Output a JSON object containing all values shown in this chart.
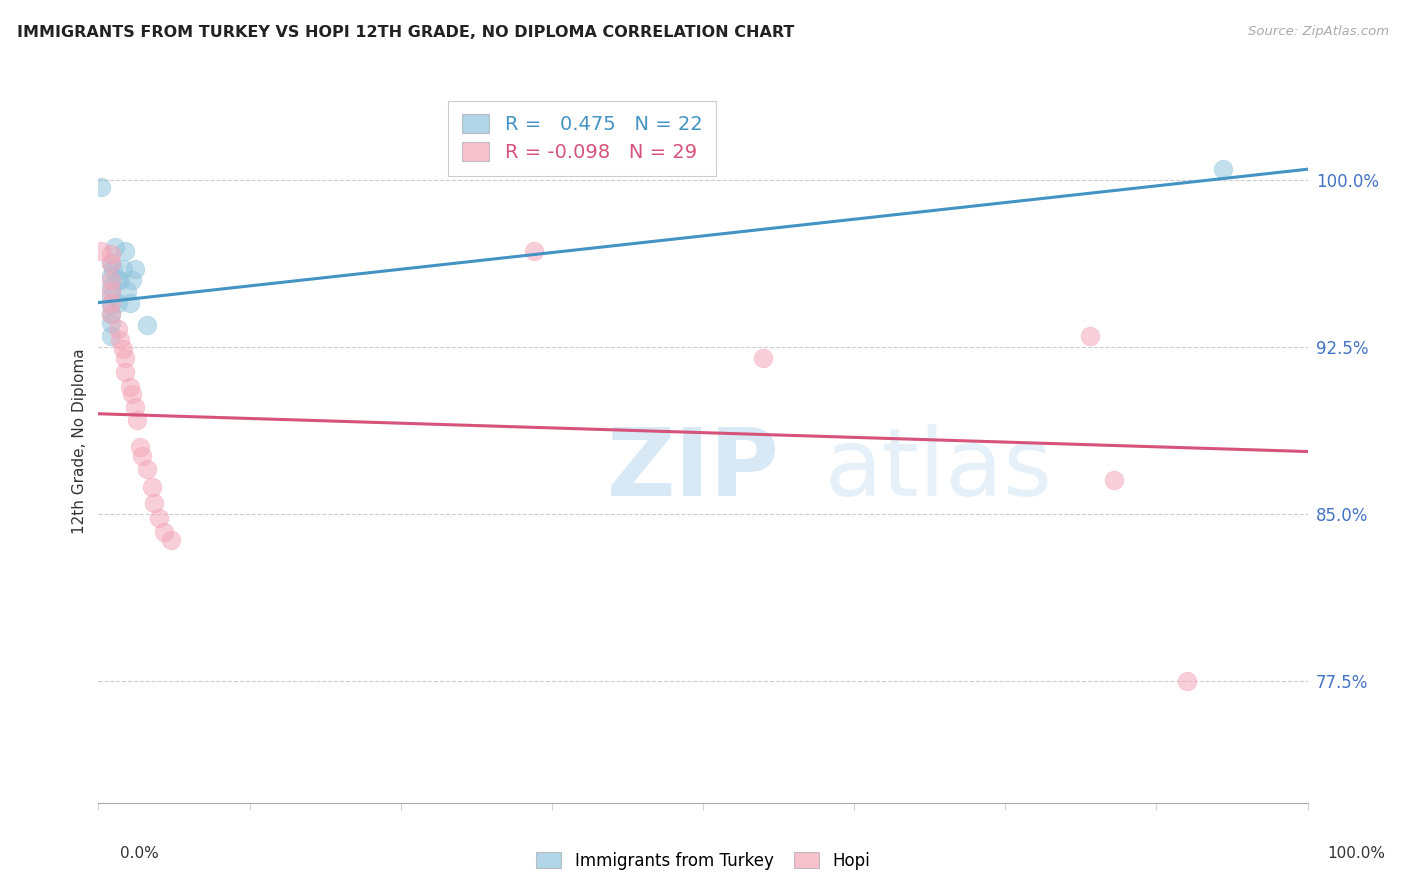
{
  "title": "IMMIGRANTS FROM TURKEY VS HOPI 12TH GRADE, NO DIPLOMA CORRELATION CHART",
  "source": "Source: ZipAtlas.com",
  "ylabel": "12th Grade, No Diploma",
  "ytick_labels": [
    "100.0%",
    "92.5%",
    "85.0%",
    "77.5%"
  ],
  "ytick_values": [
    1.0,
    0.925,
    0.85,
    0.775
  ],
  "xmin": 0.0,
  "xmax": 1.0,
  "ymin": 0.72,
  "ymax": 1.045,
  "legend_label_blue": "Immigrants from Turkey",
  "legend_label_pink": "Hopi",
  "R_blue": 0.475,
  "N_blue": 22,
  "R_pink": -0.098,
  "N_pink": 29,
  "blue_color": "#92c5de",
  "pink_color": "#f4a6b8",
  "blue_line_color": "#4393c3",
  "pink_line_color": "#d6537a",
  "watermark_zip": "ZIP",
  "watermark_atlas": "atlas",
  "blue_dots": [
    [
      0.002,
      0.997
    ],
    [
      0.01,
      0.963
    ],
    [
      0.01,
      0.957
    ],
    [
      0.01,
      0.952
    ],
    [
      0.01,
      0.948
    ],
    [
      0.01,
      0.944
    ],
    [
      0.01,
      0.94
    ],
    [
      0.01,
      0.936
    ],
    [
      0.01,
      0.93
    ],
    [
      0.012,
      0.96
    ],
    [
      0.014,
      0.97
    ],
    [
      0.016,
      0.955
    ],
    [
      0.016,
      0.945
    ],
    [
      0.018,
      0.955
    ],
    [
      0.02,
      0.96
    ],
    [
      0.022,
      0.968
    ],
    [
      0.024,
      0.95
    ],
    [
      0.026,
      0.945
    ],
    [
      0.028,
      0.955
    ],
    [
      0.03,
      0.96
    ],
    [
      0.04,
      0.935
    ],
    [
      0.93,
      1.005
    ]
  ],
  "pink_dots": [
    [
      0.002,
      0.968
    ],
    [
      0.01,
      0.967
    ],
    [
      0.01,
      0.963
    ],
    [
      0.01,
      0.955
    ],
    [
      0.01,
      0.95
    ],
    [
      0.01,
      0.945
    ],
    [
      0.01,
      0.94
    ],
    [
      0.016,
      0.933
    ],
    [
      0.018,
      0.928
    ],
    [
      0.02,
      0.924
    ],
    [
      0.022,
      0.92
    ],
    [
      0.022,
      0.914
    ],
    [
      0.026,
      0.907
    ],
    [
      0.028,
      0.904
    ],
    [
      0.03,
      0.898
    ],
    [
      0.032,
      0.892
    ],
    [
      0.034,
      0.88
    ],
    [
      0.036,
      0.876
    ],
    [
      0.04,
      0.87
    ],
    [
      0.044,
      0.862
    ],
    [
      0.046,
      0.855
    ],
    [
      0.05,
      0.848
    ],
    [
      0.054,
      0.842
    ],
    [
      0.06,
      0.838
    ],
    [
      0.36,
      0.968
    ],
    [
      0.55,
      0.92
    ],
    [
      0.82,
      0.93
    ],
    [
      0.84,
      0.865
    ],
    [
      0.9,
      0.775
    ]
  ],
  "blue_trend": [
    0.945,
    1.005
  ],
  "pink_trend": [
    0.895,
    0.878
  ],
  "xtick_positions": [
    0.0,
    0.125,
    0.25,
    0.375,
    0.5,
    0.625,
    0.75,
    0.875,
    1.0
  ]
}
